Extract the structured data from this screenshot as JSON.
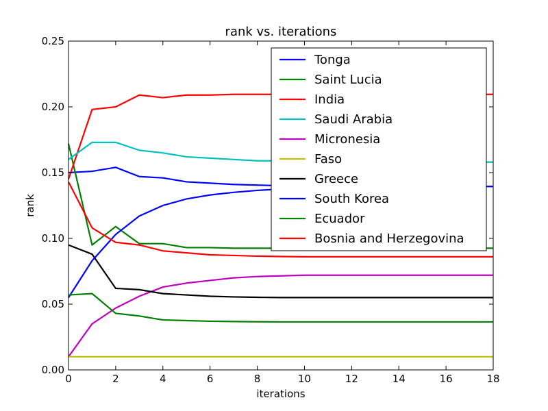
{
  "chart_data": {
    "type": "line",
    "title": "rank vs. iterations",
    "xlabel": "iterations",
    "ylabel": "rank",
    "xlim": [
      0,
      18
    ],
    "ylim": [
      0,
      0.25
    ],
    "xticks": [
      0,
      2,
      4,
      6,
      8,
      10,
      12,
      14,
      16,
      18
    ],
    "yticks": [
      0.0,
      0.05,
      0.1,
      0.15,
      0.2,
      0.25
    ],
    "ytick_labels": [
      "0.00",
      "0.05",
      "0.10",
      "0.15",
      "0.20",
      "0.25"
    ],
    "grid": false,
    "legend_position": "top-right",
    "x": [
      0,
      1,
      2,
      3,
      4,
      5,
      6,
      7,
      8,
      9,
      10,
      11,
      12,
      13,
      14,
      15,
      16,
      17,
      18
    ],
    "series": [
      {
        "name": "Tonga",
        "color": "#0000ff",
        "values": [
          0.15,
          0.151,
          0.154,
          0.147,
          0.146,
          0.143,
          0.142,
          0.141,
          0.1405,
          0.14,
          0.14,
          0.1395,
          0.1395,
          0.1395,
          0.1395,
          0.1395,
          0.1395,
          0.1395,
          0.1395
        ]
      },
      {
        "name": "Saint Lucia",
        "color": "#008000",
        "values": [
          0.172,
          0.095,
          0.109,
          0.096,
          0.096,
          0.093,
          0.093,
          0.0925,
          0.0925,
          0.0925,
          0.0925,
          0.0925,
          0.0925,
          0.0925,
          0.0925,
          0.0925,
          0.0925,
          0.0925,
          0.0925
        ]
      },
      {
        "name": "India",
        "color": "#ff0000",
        "values": [
          0.145,
          0.198,
          0.2,
          0.209,
          0.207,
          0.209,
          0.209,
          0.2095,
          0.2095,
          0.2095,
          0.2095,
          0.2095,
          0.2095,
          0.2095,
          0.2095,
          0.2095,
          0.2095,
          0.2095,
          0.2095
        ]
      },
      {
        "name": "Saudi Arabia",
        "color": "#00bfbf",
        "values": [
          0.16,
          0.173,
          0.173,
          0.167,
          0.165,
          0.162,
          0.161,
          0.16,
          0.159,
          0.159,
          0.1585,
          0.1585,
          0.1585,
          0.158,
          0.158,
          0.158,
          0.158,
          0.158,
          0.158
        ]
      },
      {
        "name": "Micronesia",
        "color": "#bf00bf",
        "values": [
          0.01,
          0.035,
          0.047,
          0.056,
          0.063,
          0.066,
          0.068,
          0.07,
          0.071,
          0.0715,
          0.072,
          0.072,
          0.072,
          0.072,
          0.072,
          0.072,
          0.072,
          0.072,
          0.072
        ]
      },
      {
        "name": "Faso",
        "color": "#bfbf00",
        "values": [
          0.01,
          0.01,
          0.01,
          0.01,
          0.01,
          0.01,
          0.01,
          0.01,
          0.01,
          0.01,
          0.01,
          0.01,
          0.01,
          0.01,
          0.01,
          0.01,
          0.01,
          0.01,
          0.01
        ]
      },
      {
        "name": "Greece",
        "color": "#000000",
        "values": [
          0.095,
          0.088,
          0.062,
          0.061,
          0.058,
          0.057,
          0.056,
          0.0555,
          0.0552,
          0.055,
          0.055,
          0.055,
          0.055,
          0.055,
          0.055,
          0.055,
          0.055,
          0.055,
          0.055
        ]
      },
      {
        "name": "South Korea",
        "color": "#0000ff",
        "values": [
          0.055,
          0.083,
          0.103,
          0.117,
          0.125,
          0.13,
          0.133,
          0.135,
          0.1365,
          0.1375,
          0.138,
          0.1385,
          0.139,
          0.139,
          0.139,
          0.1395,
          0.1395,
          0.1395,
          0.1395
        ]
      },
      {
        "name": "Ecuador",
        "color": "#008000",
        "values": [
          0.057,
          0.058,
          0.043,
          0.041,
          0.038,
          0.0375,
          0.037,
          0.0368,
          0.0366,
          0.0365,
          0.0365,
          0.0365,
          0.0365,
          0.0365,
          0.0365,
          0.0365,
          0.0365,
          0.0365,
          0.0365
        ]
      },
      {
        "name": "Bosnia and Herzegovina",
        "color": "#ff0000",
        "values": [
          0.143,
          0.108,
          0.097,
          0.095,
          0.0905,
          0.089,
          0.0875,
          0.087,
          0.0865,
          0.0862,
          0.086,
          0.086,
          0.086,
          0.086,
          0.086,
          0.086,
          0.086,
          0.086,
          0.086
        ]
      }
    ]
  }
}
